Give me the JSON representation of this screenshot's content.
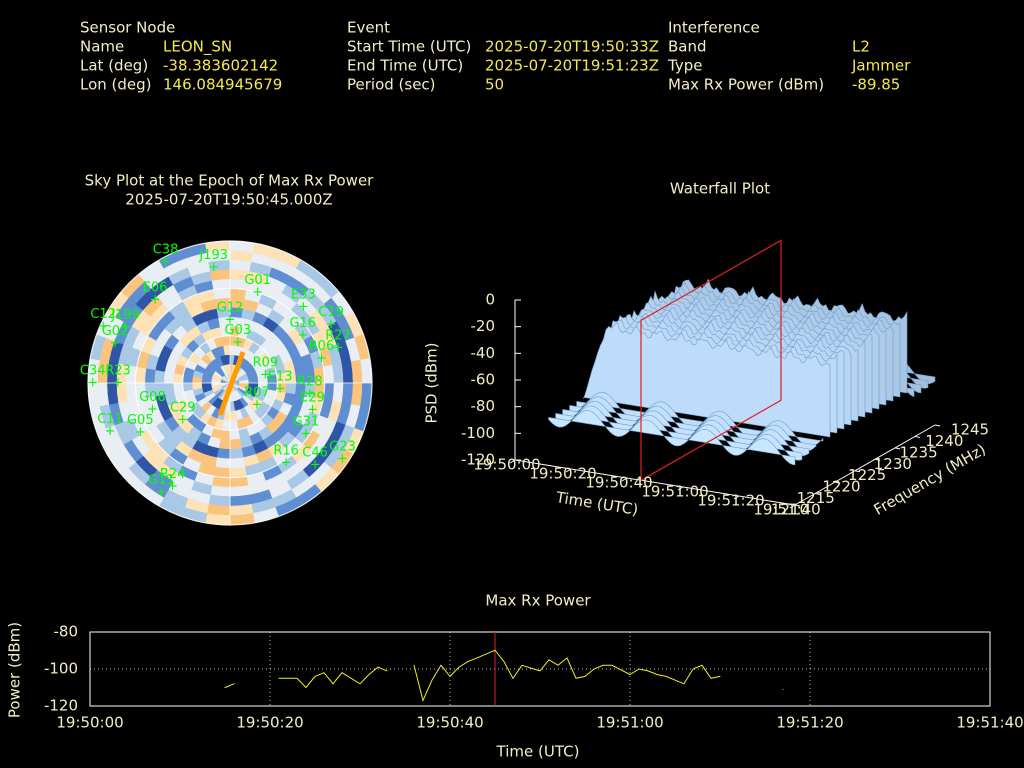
{
  "header": {
    "sensor_node": {
      "title": "Sensor Node",
      "rows": [
        [
          "Name",
          "LEON_SN"
        ],
        [
          "Lat (deg)",
          "-38.383602142"
        ],
        [
          "Lon (deg)",
          "146.084945679"
        ]
      ]
    },
    "event": {
      "title": "Event",
      "rows": [
        [
          "Start Time (UTC)",
          "2025-07-20T19:50:33Z"
        ],
        [
          "End Time (UTC)",
          "2025-07-20T19:51:23Z"
        ],
        [
          "Period (sec)",
          "50"
        ]
      ]
    },
    "interference": {
      "title": "Interference",
      "rows": [
        [
          "Band",
          "L2"
        ],
        [
          "Type",
          "Jammer"
        ],
        [
          "Max Rx Power (dBm)",
          "-89.85"
        ]
      ]
    }
  },
  "chart_data": [
    {
      "type": "polar",
      "title": "Sky Plot at the Epoch of Max Rx Power",
      "subtitle": "2025-07-20T19:50:45.000Z",
      "color": "#00ff00",
      "rticks": [
        0,
        30,
        60
      ],
      "satellites": [
        {
          "name": "J193",
          "azimuth": 352,
          "elevation": 16
        },
        {
          "name": "C38",
          "azimuth": 332,
          "elevation": 3
        },
        {
          "name": "G01",
          "azimuth": 17,
          "elevation": 30
        },
        {
          "name": "E33",
          "azimuth": 44,
          "elevation": 23
        },
        {
          "name": "C19",
          "azimuth": 60,
          "elevation": 16
        },
        {
          "name": "G16",
          "azimuth": 57,
          "elevation": 35
        },
        {
          "name": "R27",
          "azimuth": 72,
          "elevation": 18
        },
        {
          "name": "R06",
          "azimuth": 75,
          "elevation": 30
        },
        {
          "name": "G12",
          "azimuth": 0,
          "elevation": 50
        },
        {
          "name": "G03",
          "azimuth": 11,
          "elevation": 64
        },
        {
          "name": "E06",
          "azimuth": 318,
          "elevation": 19
        },
        {
          "name": "J199",
          "azimuth": 298,
          "elevation": 15
        },
        {
          "name": "C12",
          "azimuth": 294,
          "elevation": 2
        },
        {
          "name": "G02",
          "azimuth": 289,
          "elevation": 13
        },
        {
          "name": "C34",
          "azimuth": 270,
          "elevation": 3
        },
        {
          "name": "R23",
          "azimuth": 270,
          "elevation": 19
        },
        {
          "name": "R09",
          "azimuth": 77,
          "elevation": 67
        },
        {
          "name": "R28",
          "azimuth": 98,
          "elevation": 39
        },
        {
          "name": "E29",
          "azimuth": 108,
          "elevation": 35
        },
        {
          "name": "R07",
          "azimuth": 129,
          "elevation": 68
        },
        {
          "name": "G08",
          "azimuth": 251,
          "elevation": 38
        },
        {
          "name": "C11",
          "azimuth": 248,
          "elevation": 8
        },
        {
          "name": "G05",
          "azimuth": 241,
          "elevation": 25
        },
        {
          "name": "G31",
          "azimuth": 124,
          "elevation": 32
        },
        {
          "name": "R16",
          "azimuth": 145,
          "elevation": 28
        },
        {
          "name": "C46",
          "azimuth": 134,
          "elevation": 15
        },
        {
          "name": "G23",
          "azimuth": 124,
          "elevation": 4
        },
        {
          "name": "R24",
          "azimuth": 209,
          "elevation": 15
        },
        {
          "name": "G11",
          "azimuth": 212,
          "elevation": 8
        },
        {
          "name": "E13",
          "azimuth": 97,
          "elevation": 58
        },
        {
          "name": "C29",
          "azimuth": 232,
          "elevation": 52
        }
      ]
    },
    {
      "type": "waterfall3d",
      "title": "Waterfall Plot",
      "xlabel": "Time (UTC)",
      "ylabel": "Frequency (MHz)",
      "zlabel": "PSD (dBm)",
      "xlim": [
        "19:50:00",
        "19:51:40"
      ],
      "xticks": [
        "19:50:00",
        "19:50:20",
        "19:50:40",
        "19:51:00",
        "19:51:20",
        "19:51:40"
      ],
      "ylim": [
        1210,
        1245
      ],
      "yticks": [
        1210,
        1215,
        1220,
        1225,
        1230,
        1235,
        1240,
        1245
      ],
      "zlim": [
        -120,
        0
      ],
      "zticks": [
        0,
        -20,
        -40,
        -60,
        -80,
        -100,
        -120
      ],
      "marker_x": "19:50:45",
      "marker_color": "#e02020"
    },
    {
      "type": "line",
      "title": "Max Rx Power",
      "xlabel": "Time (UTC)",
      "ylabel": "Power (dBm)",
      "color": "#f0f020",
      "xlim": [
        "19:50:00",
        "19:51:40"
      ],
      "xticks": [
        "19:50:00",
        "19:50:20",
        "19:50:40",
        "19:51:00",
        "19:51:20",
        "19:51:40"
      ],
      "ylim": [
        -120,
        -80
      ],
      "yticks": [
        -80,
        -100,
        -120
      ],
      "grid": true,
      "marker_x": "19:50:45",
      "marker_color": "#e02020",
      "x": [
        "19:50:15",
        "19:50:16",
        "19:50:18",
        "19:50:21",
        "19:50:23",
        "19:50:24",
        "19:50:25",
        "19:50:26",
        "19:50:27",
        "19:50:28",
        "19:50:30",
        "19:50:31",
        "19:50:32",
        "19:50:33",
        "19:50:35",
        "19:50:36",
        "19:50:37",
        "19:50:38",
        "19:50:39",
        "19:50:40",
        "19:50:41",
        "19:50:42",
        "19:50:43",
        "19:50:45",
        "19:50:46",
        "19:50:47",
        "19:50:48",
        "19:50:50",
        "19:50:51",
        "19:50:52",
        "19:50:53",
        "19:50:54",
        "19:50:55",
        "19:50:56",
        "19:50:57",
        "19:50:58",
        "19:51:00",
        "19:51:01",
        "19:51:02",
        "19:51:03",
        "19:51:04",
        "19:51:06",
        "19:51:07",
        "19:51:08",
        "19:51:09",
        "19:51:10",
        "19:51:14",
        "19:51:17"
      ],
      "values": [
        -110,
        -108,
        null,
        -105,
        -105,
        -110,
        -104,
        -102,
        -108,
        -102,
        -108,
        -103,
        -99,
        -101,
        null,
        -98,
        -117,
        -106,
        -98,
        -104,
        -99,
        -96,
        -94,
        -89.85,
        -96,
        -105,
        -98,
        -101,
        -95,
        -98,
        -94,
        -105,
        -104,
        -100,
        -98,
        -98,
        -103,
        -100,
        -101,
        -103,
        -104,
        -108,
        -100,
        -98,
        -105,
        -104,
        null,
        -111
      ]
    }
  ]
}
